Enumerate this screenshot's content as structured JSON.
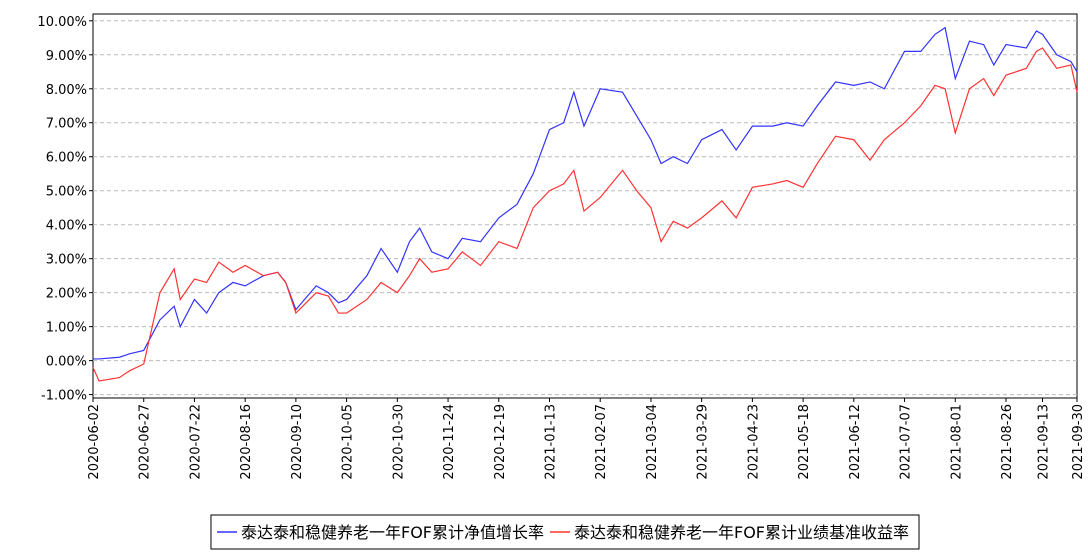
{
  "chart_data": {
    "type": "line",
    "x": [
      "2020-06-02",
      "2020-06-05",
      "2020-06-15",
      "2020-06-20",
      "2020-06-27",
      "2020-07-05",
      "2020-07-12",
      "2020-07-15",
      "2020-07-22",
      "2020-07-28",
      "2020-08-03",
      "2020-08-10",
      "2020-08-16",
      "2020-08-25",
      "2020-09-01",
      "2020-09-05",
      "2020-09-10",
      "2020-09-20",
      "2020-09-26",
      "2020-10-01",
      "2020-10-05",
      "2020-10-15",
      "2020-10-22",
      "2020-10-30",
      "2020-11-05",
      "2020-11-10",
      "2020-11-16",
      "2020-11-24",
      "2020-12-01",
      "2020-12-10",
      "2020-12-19",
      "2020-12-28",
      "2021-01-05",
      "2021-01-13",
      "2021-01-20",
      "2021-01-25",
      "2021-01-30",
      "2021-02-07",
      "2021-02-18",
      "2021-02-25",
      "2021-03-04",
      "2021-03-09",
      "2021-03-15",
      "2021-03-22",
      "2021-03-29",
      "2021-04-08",
      "2021-04-15",
      "2021-04-23",
      "2021-05-03",
      "2021-05-10",
      "2021-05-18",
      "2021-05-25",
      "2021-06-03",
      "2021-06-12",
      "2021-06-20",
      "2021-06-27",
      "2021-07-07",
      "2021-07-15",
      "2021-07-22",
      "2021-07-27",
      "2021-08-01",
      "2021-08-08",
      "2021-08-15",
      "2021-08-20",
      "2021-08-26",
      "2021-09-05",
      "2021-09-10",
      "2021-09-13",
      "2021-09-20",
      "2021-09-27",
      "2021-09-30"
    ],
    "series": [
      {
        "name": "泰达泰和稳健养老一年FOF累计净值增长率",
        "color": "#3333ff",
        "values": [
          0.05,
          0.05,
          0.1,
          0.2,
          0.3,
          1.2,
          1.6,
          1.0,
          1.8,
          1.4,
          2.0,
          2.3,
          2.2,
          2.5,
          2.6,
          2.3,
          1.5,
          2.2,
          2.0,
          1.7,
          1.8,
          2.5,
          3.3,
          2.6,
          3.5,
          3.9,
          3.2,
          3.0,
          3.6,
          3.5,
          4.2,
          4.6,
          5.5,
          6.8,
          7.0,
          7.9,
          6.9,
          8.0,
          7.9,
          7.2,
          6.5,
          5.8,
          6.0,
          5.8,
          6.5,
          6.8,
          6.2,
          6.9,
          6.9,
          7.0,
          6.9,
          7.5,
          8.2,
          8.1,
          8.2,
          8.0,
          9.1,
          9.1,
          9.6,
          9.8,
          8.3,
          9.4,
          9.3,
          8.7,
          9.3,
          9.2,
          9.7,
          9.6,
          9.0,
          8.8,
          8.5
        ]
      },
      {
        "name": "泰达泰和稳健养老一年FOF累计业绩基准收益率",
        "color": "#ff3333",
        "values": [
          -0.2,
          -0.6,
          -0.5,
          -0.3,
          -0.1,
          2.0,
          2.7,
          1.8,
          2.4,
          2.3,
          2.9,
          2.6,
          2.8,
          2.5,
          2.6,
          2.3,
          1.4,
          2.0,
          1.9,
          1.4,
          1.4,
          1.8,
          2.3,
          2.0,
          2.5,
          3.0,
          2.6,
          2.7,
          3.2,
          2.8,
          3.5,
          3.3,
          4.5,
          5.0,
          5.2,
          5.6,
          4.4,
          4.8,
          5.6,
          5.0,
          4.5,
          3.5,
          4.1,
          3.9,
          4.2,
          4.7,
          4.2,
          5.1,
          5.2,
          5.3,
          5.1,
          5.8,
          6.6,
          6.5,
          5.9,
          6.5,
          7.0,
          7.5,
          8.1,
          8.0,
          6.7,
          8.0,
          8.3,
          7.8,
          8.4,
          8.6,
          9.1,
          9.2,
          8.6,
          8.7,
          7.9
        ]
      }
    ],
    "xlim": [
      "2020-06-02",
      "2021-09-30"
    ],
    "xticks": [
      "2020-06-02",
      "2020-06-27",
      "2020-07-22",
      "2020-08-16",
      "2020-09-10",
      "2020-10-05",
      "2020-10-30",
      "2020-11-24",
      "2020-12-19",
      "2021-01-13",
      "2021-02-07",
      "2021-03-04",
      "2021-03-29",
      "2021-04-23",
      "2021-05-18",
      "2021-06-12",
      "2021-07-07",
      "2021-08-01",
      "2021-08-26",
      "2021-09-13",
      "2021-09-30"
    ],
    "ylim": [
      -1.1,
      10.2
    ],
    "yticks": [
      {
        "value": -1,
        "label": "-1.00%"
      },
      {
        "value": 0,
        "label": "0.00%"
      },
      {
        "value": 1,
        "label": "1.00%"
      },
      {
        "value": 2,
        "label": "2.00%"
      },
      {
        "value": 3,
        "label": "3.00%"
      },
      {
        "value": 4,
        "label": "4.00%"
      },
      {
        "value": 5,
        "label": "5.00%"
      },
      {
        "value": 6,
        "label": "6.00%"
      },
      {
        "value": 7,
        "label": "7.00%"
      },
      {
        "value": 8,
        "label": "8.00%"
      },
      {
        "value": 9,
        "label": "9.00%"
      },
      {
        "value": 10,
        "label": "10.00%"
      }
    ],
    "grid": true,
    "legend": "bottom"
  }
}
